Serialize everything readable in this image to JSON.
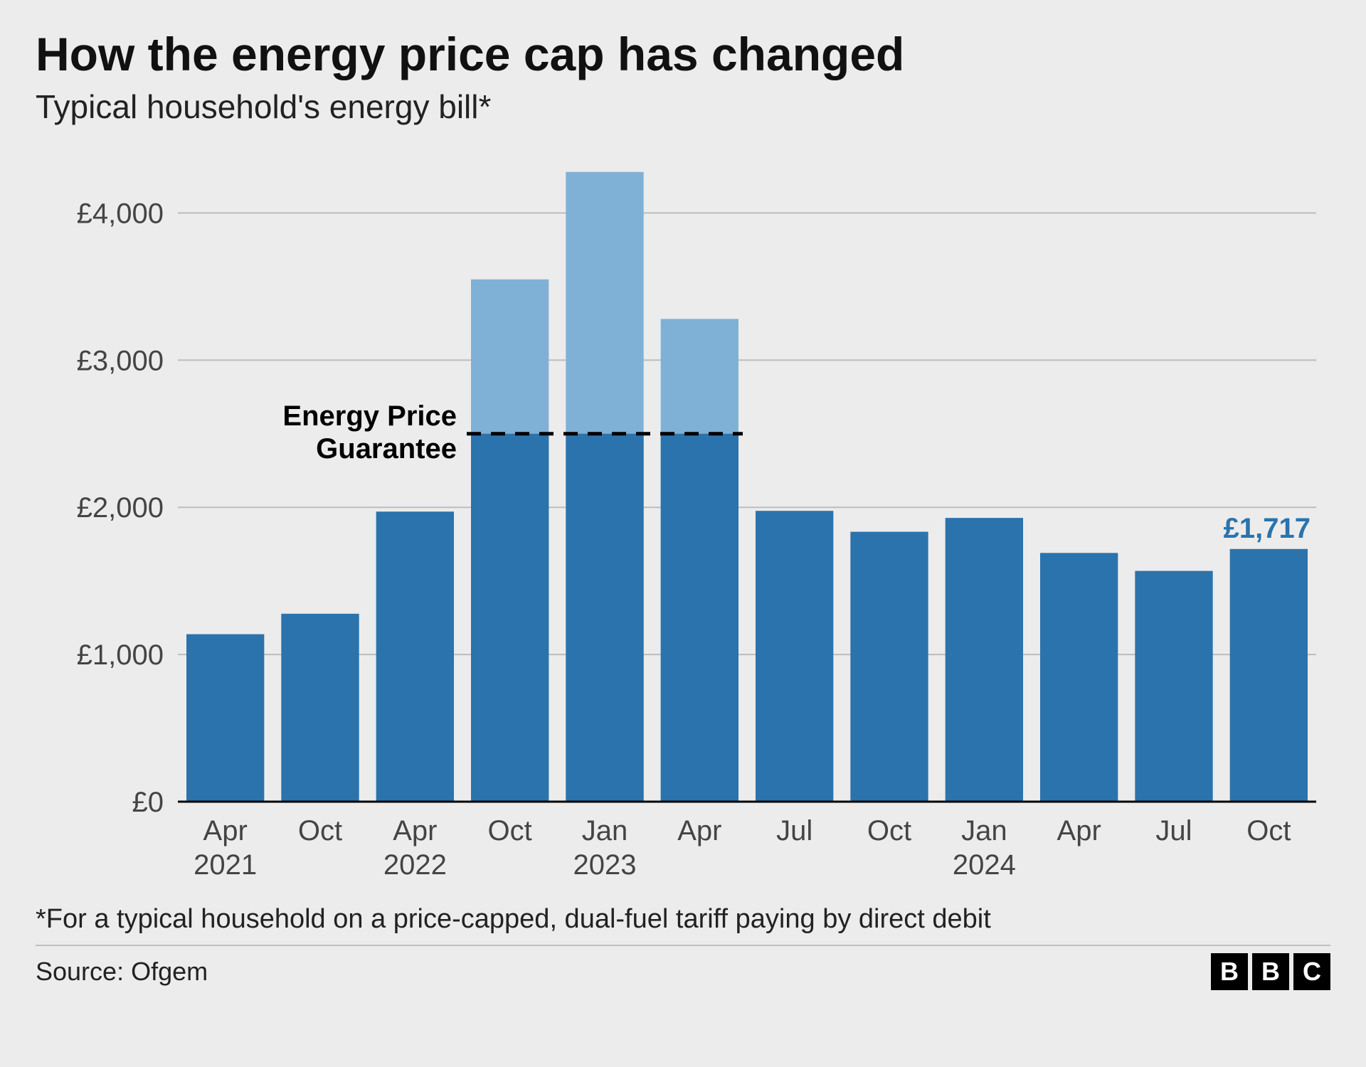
{
  "title": "How the energy price cap has changed",
  "subtitle": "Typical household's energy bill*",
  "footnote": "*For a typical household on a price-capped, dual-fuel tariff paying by direct debit",
  "source": "Source: Ofgem",
  "branding": [
    "B",
    "B",
    "C"
  ],
  "chart": {
    "type": "bar",
    "background_color": "#ececec",
    "grid_color": "#bdbdbd",
    "baseline_color": "#000000",
    "bar_color_main": "#2b73ac",
    "bar_color_light": "#7fb1d6",
    "value_label_color": "#2b73ac",
    "currency_prefix": "£",
    "ylim": [
      0,
      4350
    ],
    "yticks": [
      0,
      1000,
      2000,
      3000,
      4000
    ],
    "ytick_labels": [
      "£0",
      "£1,000",
      "£2,000",
      "£3,000",
      "£4,000"
    ],
    "bar_width_ratio": 0.82,
    "categories": [
      {
        "line1": "Apr",
        "line2": "2021"
      },
      {
        "line1": "Oct",
        "line2": ""
      },
      {
        "line1": "Apr",
        "line2": "2022"
      },
      {
        "line1": "Oct",
        "line2": ""
      },
      {
        "line1": "Jan",
        "line2": "2023"
      },
      {
        "line1": "Apr",
        "line2": ""
      },
      {
        "line1": "Jul",
        "line2": ""
      },
      {
        "line1": "Oct",
        "line2": ""
      },
      {
        "line1": "Jan",
        "line2": "2024"
      },
      {
        "line1": "Apr",
        "line2": ""
      },
      {
        "line1": "Jul",
        "line2": ""
      },
      {
        "line1": "Oct",
        "line2": ""
      }
    ],
    "series_light": [
      null,
      null,
      null,
      3549,
      4279,
      3280,
      null,
      null,
      null,
      null,
      null,
      null
    ],
    "series_main": [
      1138,
      1277,
      1971,
      2500,
      2500,
      2500,
      1976,
      1834,
      1928,
      1690,
      1568,
      1717
    ],
    "epg": {
      "label_line1": "Energy Price",
      "label_line2": "Guarantee",
      "value": 2500,
      "span_from_index": 3,
      "span_to_index": 5
    },
    "value_callout": {
      "index": 11,
      "text": "£1,717"
    },
    "axis_fontsize": 40,
    "epg_label_fontsize": 40,
    "value_label_fontsize": 40,
    "title_fontsize": 66,
    "subtitle_fontsize": 46
  }
}
